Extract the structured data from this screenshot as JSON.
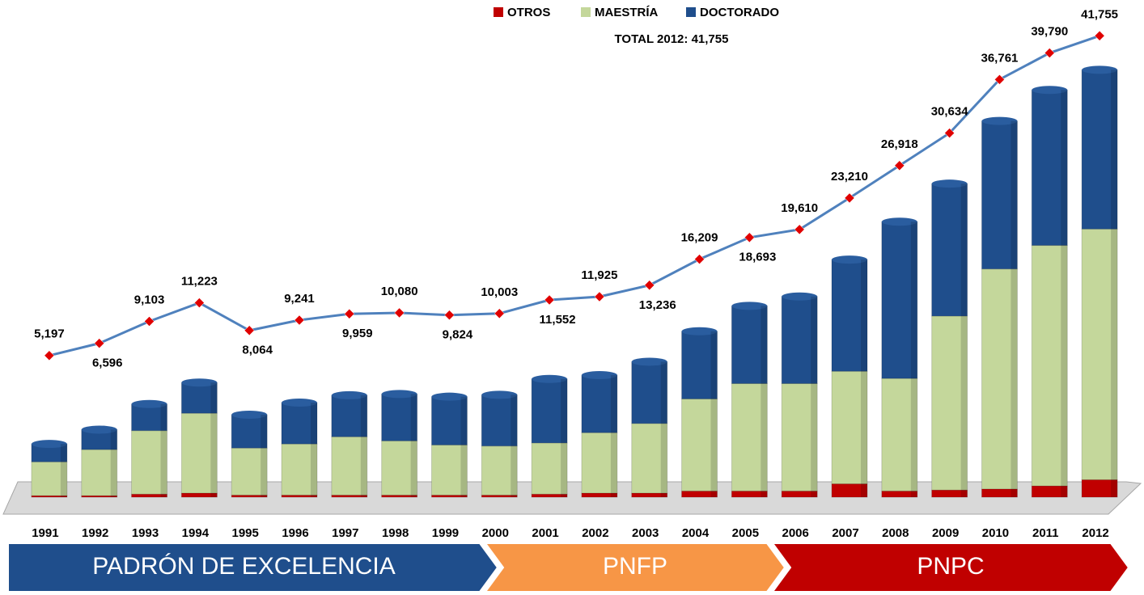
{
  "chart_data": {
    "type": "bar",
    "annotation": "TOTAL  2012:   41,755",
    "categories": [
      "1991",
      "1992",
      "1993",
      "1994",
      "1995",
      "1996",
      "1997",
      "1998",
      "1999",
      "2000",
      "2001",
      "2002",
      "2003",
      "2004",
      "2005",
      "2006",
      "2007",
      "2008",
      "2009",
      "2010",
      "2011",
      "2012"
    ],
    "series": [
      {
        "name": "OTROS",
        "color": "#c00000",
        "values": [
          150,
          150,
          300,
          400,
          200,
          200,
          200,
          200,
          200,
          200,
          300,
          400,
          400,
          600,
          600,
          600,
          1300,
          600,
          700,
          800,
          1100,
          1700
        ]
      },
      {
        "name": "MAESTRÍA",
        "color": "#c4d79b",
        "values": [
          3300,
          4500,
          6200,
          7800,
          4600,
          5000,
          5700,
          5300,
          4900,
          4800,
          5000,
          5900,
          6800,
          9000,
          10500,
          10500,
          11000,
          11000,
          17000,
          21500,
          23500,
          24500
        ]
      },
      {
        "name": "DOCTORADO",
        "color": "#1f4e8c",
        "values": [
          1750,
          1950,
          2600,
          3000,
          3260,
          4040,
          4060,
          4580,
          4720,
          5000,
          6250,
          5625,
          6036,
          6609,
          7593,
          8510,
          10910,
          15318,
          12934,
          14461,
          15190,
          15555
        ]
      },
      {
        "name": "TOTAL",
        "type": "line",
        "axis": "y2",
        "color": "#4f81bd",
        "marker_color": "#e00000",
        "values": [
          5197,
          6596,
          9103,
          11223,
          8064,
          9241,
          9959,
          10080,
          9824,
          10003,
          11552,
          11925,
          13236,
          16209,
          18693,
          19610,
          23210,
          26918,
          30634,
          36761,
          39790,
          41755
        ],
        "value_labels": [
          "5,197",
          "6,596",
          "9,103",
          "11,223",
          "8,064",
          "9,241",
          "9,959",
          "10,080",
          "9,824",
          "10,003",
          "11,552",
          "11,925",
          "13,236",
          "16,209",
          "18,693",
          "19,610",
          "23,210",
          "26,918",
          "30,634",
          "36,761",
          "39,790",
          "41,755"
        ]
      }
    ],
    "ylim": [
      0,
      47000
    ],
    "y2lim": [
      -11000,
      44000
    ],
    "phases": [
      {
        "label": "PADRÓN DE EXCELENCIA",
        "color": "#1f4e8c"
      },
      {
        "label": "PNFP",
        "color": "#f79646"
      },
      {
        "label": "PNPC",
        "color": "#c00000"
      }
    ]
  }
}
